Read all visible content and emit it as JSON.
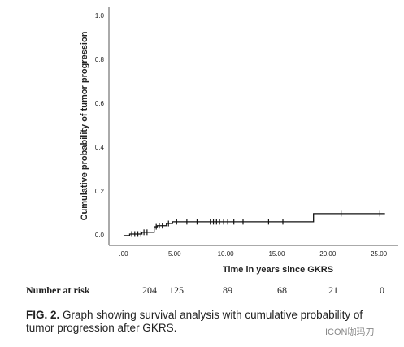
{
  "chart_data": {
    "type": "step",
    "y_label": "Cumulative probability of tumor progression",
    "x_label": "Time in years since GKRS",
    "xlim": [
      -1.43,
      26.9
    ],
    "ylim": [
      -0.045,
      1.045
    ],
    "xticks": [
      {
        "value": 0,
        "label": ".00"
      },
      {
        "value": 5,
        "label": "5.00"
      },
      {
        "value": 10,
        "label": "10.00"
      },
      {
        "value": 15,
        "label": "15.00"
      },
      {
        "value": 20,
        "label": "20.00"
      },
      {
        "value": 25,
        "label": "25.00"
      }
    ],
    "yticks": [
      {
        "value": 0,
        "label": "0.0"
      },
      {
        "value": 0.2,
        "label": "0.2"
      },
      {
        "value": 0.4,
        "label": "0.4"
      },
      {
        "value": 0.6,
        "label": "0.6"
      },
      {
        "value": 0.8,
        "label": "0.8"
      },
      {
        "value": 1,
        "label": "1.0"
      }
    ],
    "color": "#111111",
    "curve": {
      "x": [
        0,
        0.6,
        1.8,
        3.0,
        3.3,
        4.2,
        4.8,
        18.6,
        25.6
      ],
      "y": [
        0,
        0.007,
        0.015,
        0.04,
        0.045,
        0.055,
        0.063,
        0.1,
        0.1
      ]
    },
    "censored": {
      "x": [
        0.8,
        1.1,
        1.4,
        1.7,
        2.0,
        2.3,
        3.2,
        3.5,
        3.8,
        4.4,
        5.2,
        6.2,
        7.2,
        8.5,
        8.8,
        9.1,
        9.4,
        9.8,
        10.2,
        10.8,
        11.7,
        14.2,
        15.6,
        21.3,
        25.1
      ],
      "y": [
        0.007,
        0.007,
        0.007,
        0.007,
        0.015,
        0.015,
        0.04,
        0.045,
        0.045,
        0.055,
        0.063,
        0.063,
        0.063,
        0.063,
        0.063,
        0.063,
        0.063,
        0.063,
        0.063,
        0.063,
        0.063,
        0.063,
        0.063,
        0.1,
        0.1
      ]
    },
    "risk_label": "Number at risk",
    "at_risk": [
      204,
      125,
      89,
      68,
      21,
      0
    ]
  },
  "caption": {
    "label": "FIG. 2.",
    "text": " Graph showing survival analysis with cumulative probability of tumor progression after GKRS."
  },
  "watermark": "ICON咖玛刀"
}
